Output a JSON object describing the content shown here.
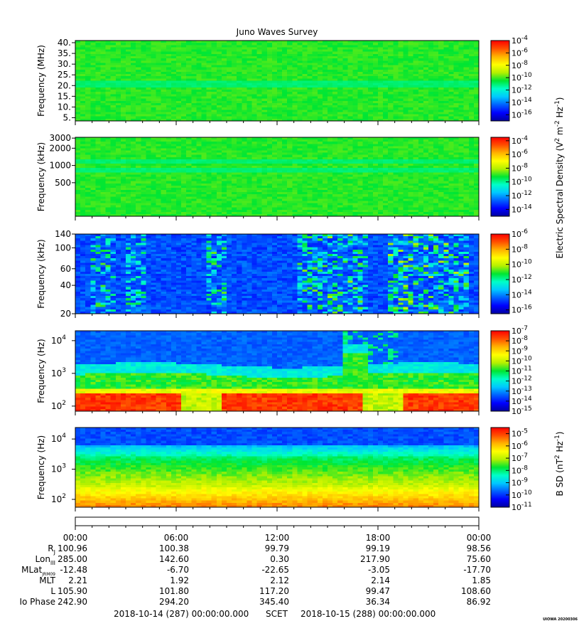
{
  "title": "Juno Waves Survey",
  "colors": {
    "scale": [
      "#0000a0",
      "#0000ff",
      "#0060ff",
      "#00c8ff",
      "#00ffc8",
      "#00e632",
      "#b4f000",
      "#ffff00",
      "#ffb400",
      "#ff5000",
      "#ff0000"
    ]
  },
  "chart_data": [
    {
      "type": "heatmap",
      "ylabel": "Frequency (MHz)",
      "ylim": [
        3.5,
        41
      ],
      "yscale": "linear",
      "yticks": [
        {
          "v": 40,
          "t": "40."
        },
        {
          "v": 35,
          "t": "35."
        },
        {
          "v": 30,
          "t": "30."
        },
        {
          "v": 25,
          "t": "25."
        },
        {
          "v": 20,
          "t": "20."
        },
        {
          "v": 15,
          "t": "15."
        },
        {
          "v": 10,
          "t": "10."
        },
        {
          "v": 5,
          "t": "5."
        }
      ],
      "bands": [
        {
          "center": 21,
          "width": 1.5,
          "level": 0.46
        }
      ],
      "background_level": 0.52,
      "colorbar": {
        "ticks": [
          "-4",
          "-6",
          "-8",
          "-10",
          "-12",
          "-14",
          "-16"
        ],
        "exponents": [
          -4,
          -6,
          -8,
          -10,
          -12,
          -14,
          -16
        ],
        "range": [
          -17,
          -4
        ]
      }
    },
    {
      "type": "heatmap",
      "ylabel": "Frequency (kHz)",
      "ylim": [
        130,
        3100
      ],
      "yscale": "log",
      "yticks": [
        {
          "v": 3000,
          "t": "3000"
        },
        {
          "v": 2000,
          "t": "2000"
        },
        {
          "v": 1000,
          "t": "1000"
        },
        {
          "v": 500,
          "t": "500"
        }
      ],
      "bands": [
        {
          "center": 1150,
          "width": 110,
          "level": 0.46
        },
        {
          "center": 820,
          "width": 90,
          "level": 0.46
        }
      ],
      "background_level": 0.52,
      "colorbar": {
        "ticks": [
          "-4",
          "-6",
          "-8",
          "-10",
          "-12",
          "-14"
        ],
        "exponents": [
          -4,
          -6,
          -8,
          -10,
          -12,
          -14
        ],
        "range": [
          -15,
          -3.5
        ]
      }
    },
    {
      "type": "heatmap",
      "ylabel": "Frequency (kHz)",
      "ylim": [
        20,
        140
      ],
      "yscale": "log",
      "yticks": [
        {
          "v": 140,
          "t": "140"
        },
        {
          "v": 100,
          "t": "100"
        },
        {
          "v": 60,
          "t": "60"
        },
        {
          "v": 40,
          "t": "40"
        },
        {
          "v": 20,
          "t": "20"
        }
      ],
      "background_level": 0.18,
      "colorbar": {
        "ticks": [
          "-6",
          "-8",
          "-10",
          "-12",
          "-14",
          "-16"
        ],
        "exponents": [
          -6,
          -8,
          -10,
          -12,
          -14,
          -16
        ],
        "range": [
          -16.5,
          -6
        ]
      }
    },
    {
      "type": "heatmap",
      "ylabel": "Frequency (Hz)",
      "ylim": [
        70,
        20000
      ],
      "yscale": "log",
      "yticks": [
        {
          "v": 10000,
          "t": "10",
          "e": "4"
        },
        {
          "v": 1000,
          "t": "10",
          "e": "3"
        },
        {
          "v": 100,
          "t": "10",
          "e": "2"
        }
      ],
      "colorbar": {
        "ticks": [
          "-7",
          "-8",
          "-9",
          "-10",
          "-11",
          "-12",
          "-13",
          "-14",
          "-15"
        ],
        "exponents": [
          -7,
          -8,
          -9,
          -10,
          -11,
          -12,
          -13,
          -14,
          -15
        ],
        "range": [
          -15,
          -7
        ]
      }
    },
    {
      "type": "heatmap",
      "ylabel": "Frequency (Hz)",
      "ylim": [
        55,
        24000
      ],
      "yscale": "log",
      "yticks": [
        {
          "v": 10000,
          "t": "10",
          "e": "4"
        },
        {
          "v": 1000,
          "t": "10",
          "e": "3"
        },
        {
          "v": 100,
          "t": "10",
          "e": "2"
        }
      ],
      "colorbar": {
        "ticks": [
          "-5",
          "-6",
          "-7",
          "-8",
          "-9",
          "-10",
          "-11"
        ],
        "exponents": [
          -5,
          -6,
          -7,
          -8,
          -9,
          -10,
          -11
        ],
        "range": [
          -11,
          -4.5
        ]
      }
    }
  ],
  "colorbar_labels": {
    "efield": "Electric Spectral Density (V",
    "bfield": "B SD (nT"
  },
  "time_axis": {
    "ticks": [
      "00:00",
      "06:00",
      "12:00",
      "18:00",
      "00:00"
    ],
    "minor_per_major": 6
  },
  "ephemeris": [
    {
      "label": "R",
      "sub": "J",
      "values": [
        "100.96",
        "100.38",
        "99.79",
        "99.19",
        "98.56"
      ]
    },
    {
      "label": "Lon",
      "sub": "III",
      "values": [
        "285.00",
        "142.60",
        "0.30",
        "217.90",
        "75.60"
      ]
    },
    {
      "label": "MLat",
      "sub": "JRM09",
      "values": [
        "-12.48",
        "-6.70",
        "-22.65",
        "-3.05",
        "-17.70"
      ]
    },
    {
      "label": "MLT",
      "sub": "",
      "values": [
        "2.21",
        "1.92",
        "2.12",
        "2.14",
        "1.85"
      ]
    },
    {
      "label": "L",
      "sub": "",
      "values": [
        "105.90",
        "101.80",
        "117.20",
        "99.47",
        "108.60"
      ]
    },
    {
      "label": "Io Phase",
      "sub": "",
      "values": [
        "242.90",
        "294.20",
        "345.40",
        "36.34",
        "86.92"
      ]
    }
  ],
  "footer": {
    "start": "2018-10-14 (287) 00:00:00.000",
    "scet": "SCET",
    "end": "2018-10-15 (288) 00:00:00.000",
    "stamp": "UIOWA 20200306"
  }
}
